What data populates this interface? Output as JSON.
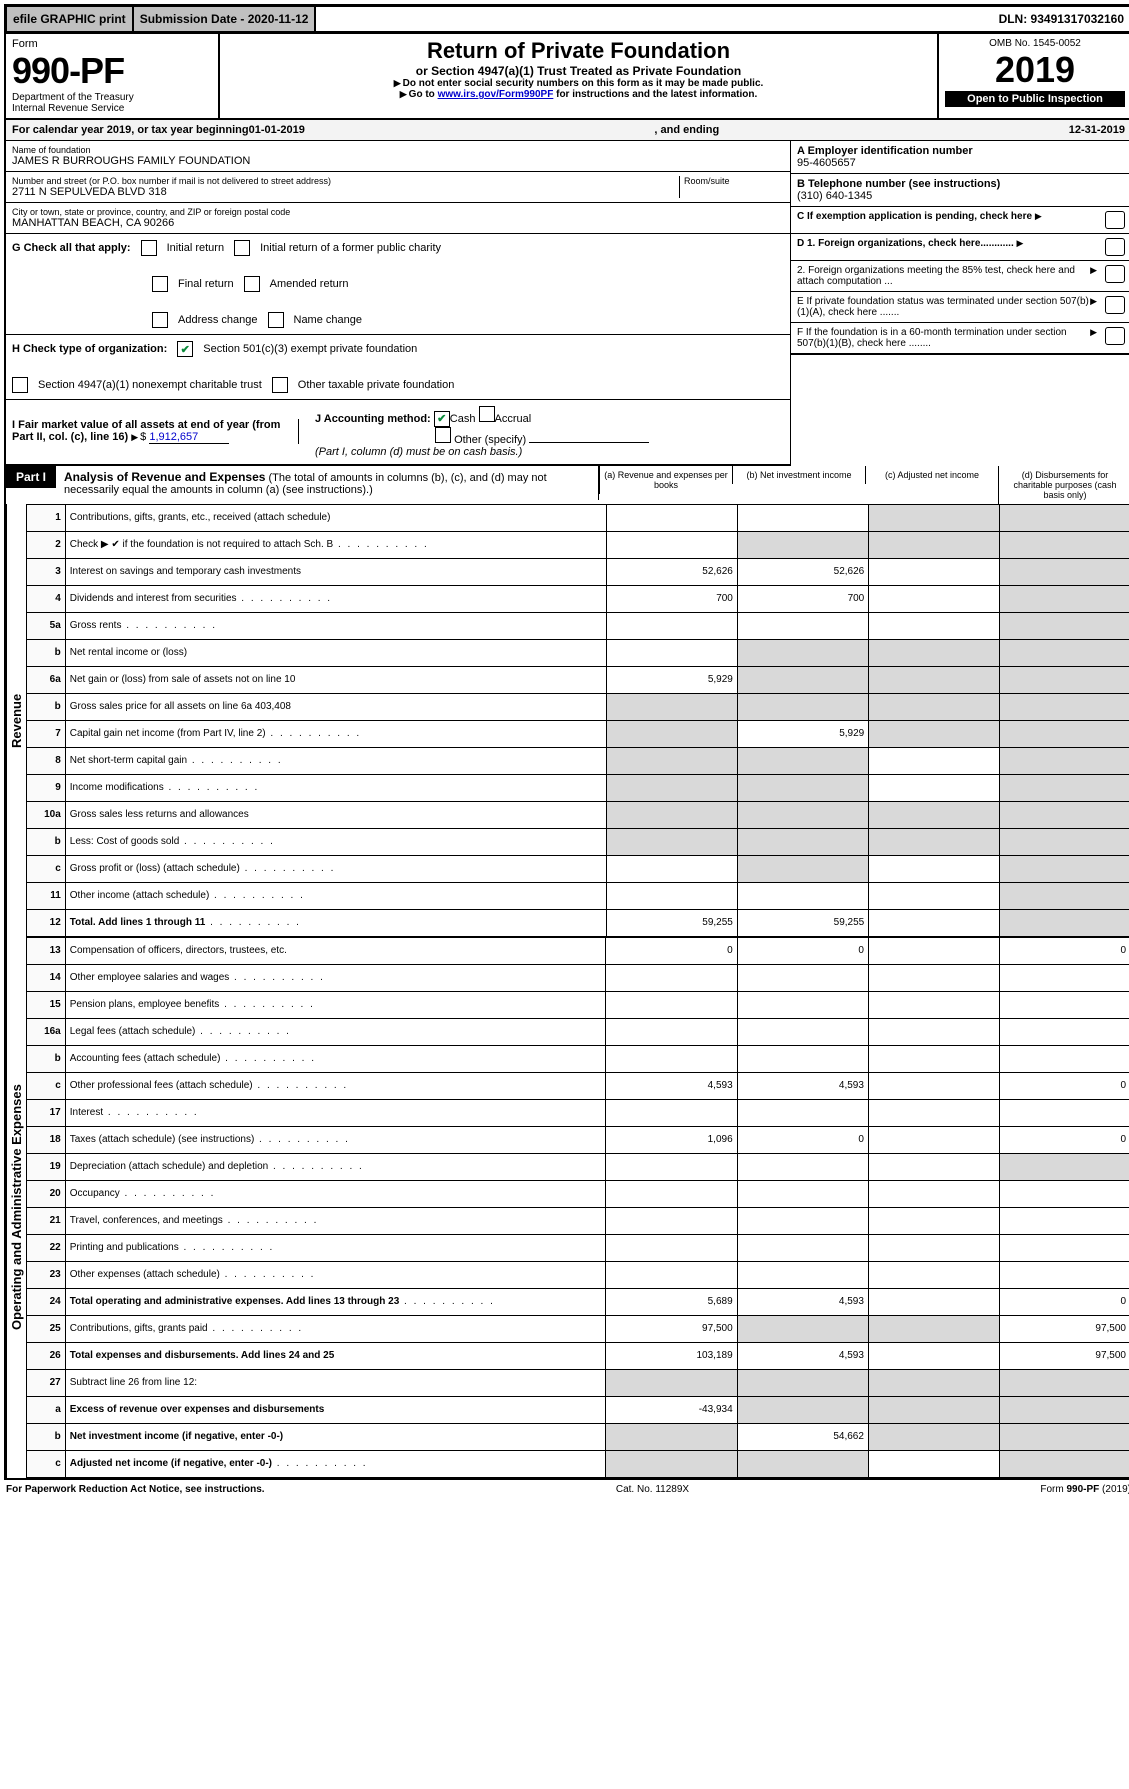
{
  "header": {
    "efile": "efile GRAPHIC print",
    "submission": "Submission Date - 2020-11-12",
    "dln": "DLN: 93491317032160"
  },
  "form": {
    "form_label": "Form",
    "number": "990-PF",
    "dept": "Department of the Treasury",
    "irs": "Internal Revenue Service",
    "title": "Return of Private Foundation",
    "subtitle": "or Section 4947(a)(1) Trust Treated as Private Foundation",
    "instr1": "Do not enter social security numbers on this form as it may be made public.",
    "instr2_pre": "Go to ",
    "instr2_link": "www.irs.gov/Form990PF",
    "instr2_post": " for instructions and the latest information.",
    "omb": "OMB No. 1545-0052",
    "year": "2019",
    "open": "Open to Public Inspection"
  },
  "calendar": {
    "pre": "For calendar year 2019, or tax year beginning ",
    "begin": "01-01-2019",
    "mid": " , and ending ",
    "end": "12-31-2019"
  },
  "entity": {
    "name_label": "Name of foundation",
    "name": "JAMES R BURROUGHS FAMILY FOUNDATION",
    "addr_label": "Number and street (or P.O. box number if mail is not delivered to street address)",
    "addr": "2711 N SEPULVEDA BLVD 318",
    "room_label": "Room/suite",
    "city_label": "City or town, state or province, country, and ZIP or foreign postal code",
    "city": "MANHATTAN BEACH, CA  90266",
    "A_label": "A Employer identification number",
    "A_val": "95-4605657",
    "B_label": "B Telephone number (see instructions)",
    "B_val": "(310) 640-1345",
    "C_label": "C If exemption application is pending, check here"
  },
  "G": {
    "label": "G Check all that apply:",
    "initial": "Initial return",
    "initial_former": "Initial return of a former public charity",
    "final": "Final return",
    "amended": "Amended return",
    "addr_change": "Address change",
    "name_change": "Name change"
  },
  "H": {
    "label": "H Check type of organization:",
    "s501": "Section 501(c)(3) exempt private foundation",
    "s4947": "Section 4947(a)(1) nonexempt charitable trust",
    "other_tax": "Other taxable private foundation"
  },
  "I": {
    "label": "I Fair market value of all assets at end of year (from Part II, col. (c), line 16)",
    "val": "1,912,657"
  },
  "J": {
    "label": "J Accounting method:",
    "cash": "Cash",
    "accrual": "Accrual",
    "other": "Other (specify)",
    "note": "(Part I, column (d) must be on cash basis.)"
  },
  "D": {
    "d1": "D 1. Foreign organizations, check here............",
    "d2": "2. Foreign organizations meeting the 85% test, check here and attach computation ..."
  },
  "E": "E  If private foundation status was terminated under section 507(b)(1)(A), check here .......",
  "F": "F  If the foundation is in a 60-month termination under section 507(b)(1)(B), check here ........",
  "part1": {
    "tab": "Part I",
    "title": "Analysis of Revenue and Expenses",
    "title_note": " (The total of amounts in columns (b), (c), and (d) may not necessarily equal the amounts in column (a) (see instructions).)",
    "col_a": "(a)  Revenue and expenses per books",
    "col_b": "(b)  Net investment income",
    "col_c": "(c)  Adjusted net income",
    "col_d": "(d)  Disbursements for charitable purposes (cash basis only)"
  },
  "sections": {
    "rev": "Revenue",
    "exp": "Operating and Administrative Expenses"
  },
  "rows": [
    {
      "n": "1",
      "d": "Contributions, gifts, grants, etc., received (attach schedule)",
      "a": "",
      "b": "",
      "c": "g",
      "dd": "g"
    },
    {
      "n": "2",
      "d": "Check ▶ ✔ if the foundation is not required to attach Sch. B",
      "a": "",
      "b": "g",
      "c": "g",
      "dd": "g",
      "dots": true
    },
    {
      "n": "3",
      "d": "Interest on savings and temporary cash investments",
      "a": "52,626",
      "b": "52,626",
      "c": "",
      "dd": "g"
    },
    {
      "n": "4",
      "d": "Dividends and interest from securities",
      "a": "700",
      "b": "700",
      "c": "",
      "dd": "g",
      "dots": true
    },
    {
      "n": "5a",
      "d": "Gross rents",
      "a": "",
      "b": "",
      "c": "",
      "dd": "g",
      "dots": true
    },
    {
      "n": "b",
      "d": "Net rental income or (loss)",
      "a": "",
      "b": "g",
      "c": "g",
      "dd": "g",
      "under": true
    },
    {
      "n": "6a",
      "d": "Net gain or (loss) from sale of assets not on line 10",
      "a": "5,929",
      "b": "g",
      "c": "g",
      "dd": "g"
    },
    {
      "n": "b",
      "d": "Gross sales price for all assets on line 6a                     403,408",
      "a": "g",
      "b": "g",
      "c": "g",
      "dd": "g",
      "under": true
    },
    {
      "n": "7",
      "d": "Capital gain net income (from Part IV, line 2)",
      "a": "g",
      "b": "5,929",
      "c": "g",
      "dd": "g",
      "dots": true
    },
    {
      "n": "8",
      "d": "Net short-term capital gain",
      "a": "g",
      "b": "g",
      "c": "",
      "dd": "g",
      "dots": true
    },
    {
      "n": "9",
      "d": "Income modifications",
      "a": "g",
      "b": "g",
      "c": "",
      "dd": "g",
      "dots": true
    },
    {
      "n": "10a",
      "d": "Gross sales less returns and allowances",
      "a": "g",
      "b": "g",
      "c": "g",
      "dd": "g",
      "under": true
    },
    {
      "n": "b",
      "d": "Less: Cost of goods sold",
      "a": "g",
      "b": "g",
      "c": "g",
      "dd": "g",
      "dots": true,
      "under": true
    },
    {
      "n": "c",
      "d": "Gross profit or (loss) (attach schedule)",
      "a": "",
      "b": "g",
      "c": "",
      "dd": "g",
      "dots": true
    },
    {
      "n": "11",
      "d": "Other income (attach schedule)",
      "a": "",
      "b": "",
      "c": "",
      "dd": "g",
      "dots": true
    },
    {
      "n": "12",
      "d": "Total. Add lines 1 through 11",
      "a": "59,255",
      "b": "59,255",
      "c": "",
      "dd": "g",
      "bold": true,
      "dots": true
    }
  ],
  "exp_rows": [
    {
      "n": "13",
      "d": "Compensation of officers, directors, trustees, etc.",
      "a": "0",
      "b": "0",
      "c": "",
      "dd": "0"
    },
    {
      "n": "14",
      "d": "Other employee salaries and wages",
      "a": "",
      "b": "",
      "c": "",
      "dd": "",
      "dots": true
    },
    {
      "n": "15",
      "d": "Pension plans, employee benefits",
      "a": "",
      "b": "",
      "c": "",
      "dd": "",
      "dots": true
    },
    {
      "n": "16a",
      "d": "Legal fees (attach schedule)",
      "a": "",
      "b": "",
      "c": "",
      "dd": "",
      "dots": true
    },
    {
      "n": "b",
      "d": "Accounting fees (attach schedule)",
      "a": "",
      "b": "",
      "c": "",
      "dd": "",
      "dots": true
    },
    {
      "n": "c",
      "d": "Other professional fees (attach schedule)",
      "a": "4,593",
      "b": "4,593",
      "c": "",
      "dd": "0",
      "dots": true
    },
    {
      "n": "17",
      "d": "Interest",
      "a": "",
      "b": "",
      "c": "",
      "dd": "",
      "dots": true
    },
    {
      "n": "18",
      "d": "Taxes (attach schedule) (see instructions)",
      "a": "1,096",
      "b": "0",
      "c": "",
      "dd": "0",
      "dots": true
    },
    {
      "n": "19",
      "d": "Depreciation (attach schedule) and depletion",
      "a": "",
      "b": "",
      "c": "",
      "dd": "g",
      "dots": true
    },
    {
      "n": "20",
      "d": "Occupancy",
      "a": "",
      "b": "",
      "c": "",
      "dd": "",
      "dots": true
    },
    {
      "n": "21",
      "d": "Travel, conferences, and meetings",
      "a": "",
      "b": "",
      "c": "",
      "dd": "",
      "dots": true
    },
    {
      "n": "22",
      "d": "Printing and publications",
      "a": "",
      "b": "",
      "c": "",
      "dd": "",
      "dots": true
    },
    {
      "n": "23",
      "d": "Other expenses (attach schedule)",
      "a": "",
      "b": "",
      "c": "",
      "dd": "",
      "dots": true
    },
    {
      "n": "24",
      "d": "Total operating and administrative expenses. Add lines 13 through 23",
      "a": "5,689",
      "b": "4,593",
      "c": "",
      "dd": "0",
      "bold": true,
      "dots": true
    },
    {
      "n": "25",
      "d": "Contributions, gifts, grants paid",
      "a": "97,500",
      "b": "g",
      "c": "g",
      "dd": "97,500",
      "dots": true
    },
    {
      "n": "26",
      "d": "Total expenses and disbursements. Add lines 24 and 25",
      "a": "103,189",
      "b": "4,593",
      "c": "",
      "dd": "97,500",
      "bold": true
    },
    {
      "n": "27",
      "d": "Subtract line 26 from line 12:",
      "a": "g",
      "b": "g",
      "c": "g",
      "dd": "g"
    },
    {
      "n": "a",
      "d": "Excess of revenue over expenses and disbursements",
      "a": "-43,934",
      "b": "g",
      "c": "g",
      "dd": "g",
      "bold": true
    },
    {
      "n": "b",
      "d": "Net investment income (if negative, enter -0-)",
      "a": "g",
      "b": "54,662",
      "c": "g",
      "dd": "g",
      "bold": true
    },
    {
      "n": "c",
      "d": "Adjusted net income (if negative, enter -0-)",
      "a": "g",
      "b": "g",
      "c": "",
      "dd": "g",
      "bold": true,
      "dots": true
    }
  ],
  "footer": {
    "pra": "For Paperwork Reduction Act Notice, see instructions.",
    "cat": "Cat. No. 11289X",
    "form": "Form 990-PF (2019)"
  },
  "colors": {
    "link": "#0000cc",
    "check": "#0a8a3a",
    "grey": "#d9d9d9"
  }
}
